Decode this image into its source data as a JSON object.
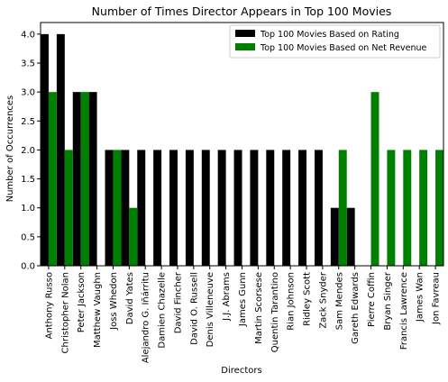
{
  "chart_data": {
    "type": "bar",
    "title": "Number of Times Director Appears in Top 100 Movies",
    "xlabel": "Directors",
    "ylabel": "Number of Occurrences",
    "ylim": [
      0,
      4.2
    ],
    "yticks": [
      "0.0",
      "0.5",
      "1.0",
      "1.5",
      "2.0",
      "2.5",
      "3.0",
      "3.5",
      "4.0"
    ],
    "ytick_values": [
      0,
      0.5,
      1.0,
      1.5,
      2.0,
      2.5,
      3.0,
      3.5,
      4.0
    ],
    "grid": false,
    "legend_position": "top-right",
    "categories": [
      "Anthony Russo",
      "Christopher Nolan",
      "Peter Jackson",
      "Matthew Vaughn",
      "Joss Whedon",
      "David Yates",
      "Alejandro G. Iñárritu",
      "Damien Chazelle",
      "David Fincher",
      "David O. Russell",
      "Denis Villeneuve",
      "J.J. Abrams",
      "James Gunn",
      "Martin Scorsese",
      "Quentin Tarantino",
      "Rian Johnson",
      "Ridley Scott",
      "Zack Snyder",
      "Sam Mendes",
      "Gareth Edwards",
      "Pierre Coffin",
      "Bryan Singer",
      "Francis Lawrence",
      "James Wan",
      "Jon Favreau"
    ],
    "series": [
      {
        "name": "Top 100 Movies Based on Rating",
        "color": "#000000",
        "values": [
          4,
          4,
          3,
          3,
          2,
          2,
          2,
          2,
          2,
          2,
          2,
          2,
          2,
          2,
          2,
          2,
          2,
          2,
          1,
          1,
          0,
          0,
          0,
          0,
          0
        ]
      },
      {
        "name": "Top 100 Movies Based on Net Revenue",
        "color": "#008000",
        "values": [
          3,
          2,
          3,
          0,
          2,
          1,
          0,
          0,
          0,
          0,
          0,
          0,
          0,
          0,
          0,
          0,
          0,
          0,
          2,
          0,
          3,
          2,
          2,
          2,
          2
        ]
      }
    ]
  }
}
